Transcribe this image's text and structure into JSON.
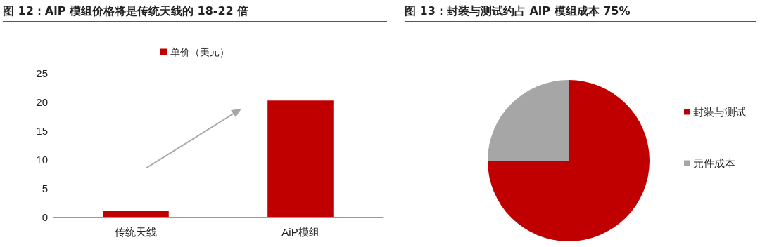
{
  "chart_data": [
    {
      "type": "bar",
      "title": "图 12：AiP 模组价格将是传统天线的 18-22 倍",
      "categories": [
        "传统天线",
        "AiP模组"
      ],
      "series": [
        {
          "name": "单价（美元）",
          "color": "#c00000",
          "values": [
            1.1,
            20.2
          ]
        }
      ],
      "ylim": [
        0,
        25
      ],
      "yticks": [
        0,
        5,
        10,
        15,
        20,
        25
      ],
      "grid": false,
      "legend": "top"
    },
    {
      "type": "pie",
      "title": "图 13：封装与测试约占 AiP 模组成本 75%",
      "categories": [
        "封装与测试",
        "元件成本"
      ],
      "values": [
        75,
        25
      ],
      "colors": [
        "#c00000",
        "#a6a6a6"
      ],
      "legend": "right"
    }
  ]
}
